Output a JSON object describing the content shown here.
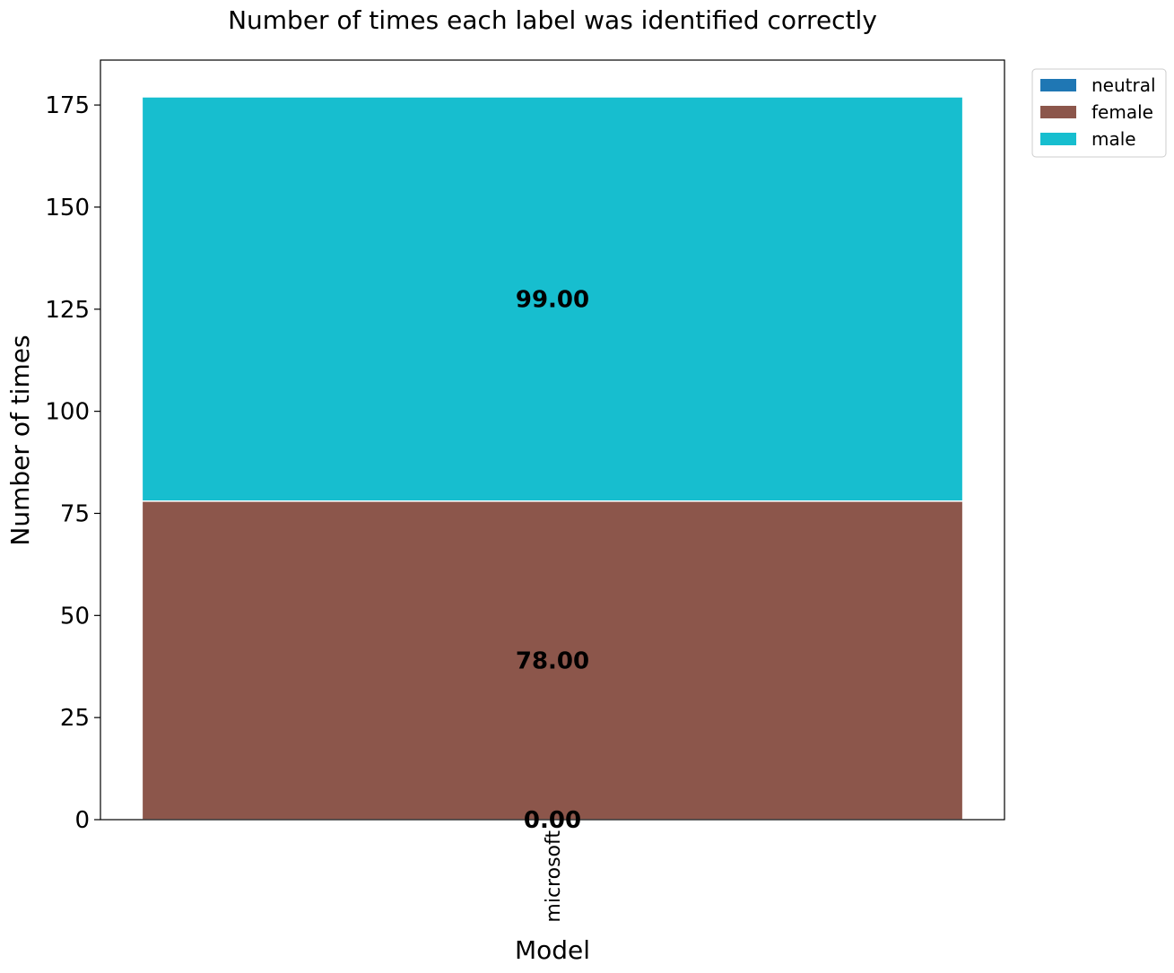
{
  "chart_data": {
    "type": "bar",
    "stacked": true,
    "title": "Number of times each label was identified correctly",
    "xlabel": "Model",
    "ylabel": "Number of times",
    "categories": [
      "microsoft"
    ],
    "series": [
      {
        "name": "neutral",
        "values": [
          0
        ],
        "color": "#1f77b4",
        "label": "0.00"
      },
      {
        "name": "female",
        "values": [
          78
        ],
        "color": "#8c564b",
        "label": "78.00"
      },
      {
        "name": "male",
        "values": [
          99
        ],
        "color": "#17becf",
        "label": "99.00"
      }
    ],
    "ylim": [
      0,
      186
    ],
    "yticks": [
      0,
      25,
      50,
      75,
      100,
      125,
      150,
      175
    ],
    "grid": false,
    "legend_position": "top-right, outside plot"
  }
}
